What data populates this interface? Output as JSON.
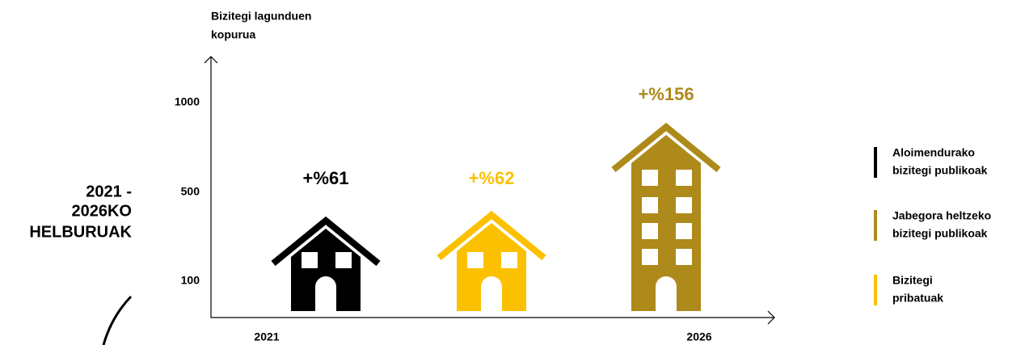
{
  "title": [
    "2021 -",
    "2026KO",
    "HELBURUAK"
  ],
  "axis_label": [
    "Bizitegi lagunduen",
    "kopurua"
  ],
  "y_labels": [
    "1000",
    "500",
    "100"
  ],
  "x_labels": [
    "2021",
    "2026"
  ],
  "items": [
    {
      "change": "+%61",
      "color": "#000000"
    },
    {
      "change": "+%62",
      "color": "#fbc100"
    },
    {
      "change": "+%156",
      "color": "#ad8a1a"
    }
  ],
  "legend": [
    {
      "label": [
        "Aloimendurako",
        "bizitegi publikoak"
      ],
      "color": "#000000"
    },
    {
      "label": [
        "Jabegora heltzeko",
        "bizitegi publikoak"
      ],
      "color": "#ad8a1a"
    },
    {
      "label": [
        "Bizitegi",
        "pribatuak"
      ],
      "color": "#fbc100"
    }
  ]
}
